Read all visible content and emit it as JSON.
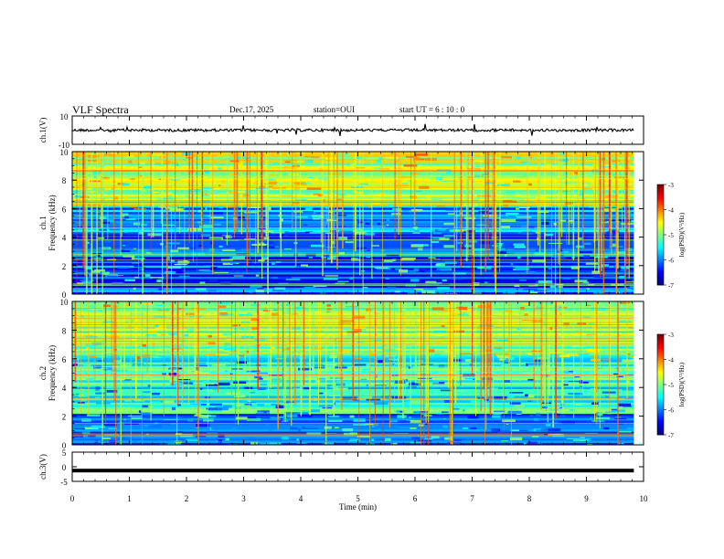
{
  "header": {
    "title": "VLF Spectra",
    "date": "Dec.17, 2025",
    "station": "station=OUI",
    "start": "start  UT =   6  : 10 : 0"
  },
  "chart_data": {
    "type": "heatmap",
    "title": "VLF Spectra",
    "xlabel": "Time  (min)",
    "xlim": [
      0,
      10
    ],
    "x_ticks": [
      0,
      1,
      2,
      3,
      4,
      5,
      6,
      7,
      8,
      9,
      10
    ],
    "data_end_min": 9.83,
    "waveform_top": {
      "ylabel": "ch.1(V)",
      "ylim": [
        -10,
        10
      ],
      "y_tick_labels": [
        "10",
        "-10"
      ],
      "baseline": 0
    },
    "spectrogram_ch1": {
      "ylabel_line1": "ch.1",
      "ylabel_line2": "Frequency  (kHz)",
      "ylim": [
        0,
        10
      ],
      "y_ticks": [
        0,
        2,
        4,
        6,
        8,
        10
      ],
      "colorbar": {
        "label": "log(PSD)(V²/Hz)",
        "range": [
          -7,
          -3
        ],
        "tick_labels": [
          "-3",
          "-4",
          "-5",
          "-6",
          "-7"
        ]
      }
    },
    "spectrogram_ch2": {
      "ylabel_line1": "ch.2",
      "ylabel_line2": "Frequency  (kHz)",
      "ylim": [
        0,
        10
      ],
      "y_ticks": [
        0,
        2,
        4,
        6,
        8,
        10
      ],
      "colorbar": {
        "label": "log(PSD)(V²/Hz)",
        "range": [
          -7,
          -3
        ],
        "tick_labels": [
          "-3",
          "-4",
          "-5",
          "-6",
          "-7"
        ]
      }
    },
    "waveform_bottom": {
      "ylabel": "ch.3(V)",
      "ylim": [
        -5,
        5
      ],
      "y_tick_labels": [
        "5",
        "0",
        "-5"
      ],
      "baseline": -1.3
    }
  },
  "colors": {
    "colormap": [
      "#00007f",
      "#0000ff",
      "#0080ff",
      "#00ffff",
      "#80ff80",
      "#ffff00",
      "#ff8000",
      "#ff0000",
      "#800000"
    ],
    "axis": "#000000"
  }
}
